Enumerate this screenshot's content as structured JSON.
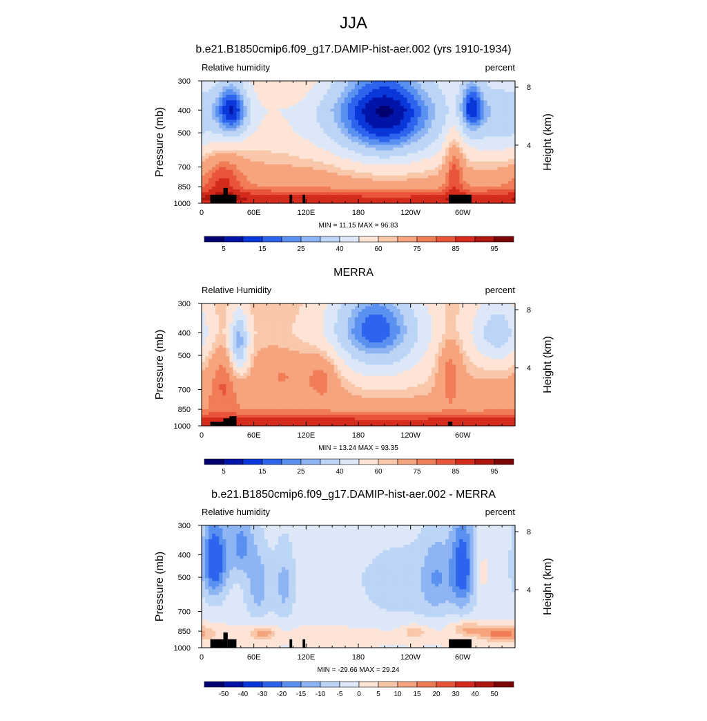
{
  "figure": {
    "title": "JJA",
    "colors": {
      "rh_levels": [
        "#000070",
        "#0014a8",
        "#0a37d9",
        "#2d64ee",
        "#5a91f0",
        "#8db4f3",
        "#bcd4f6",
        "#dce8f8",
        "#fde4d7",
        "#f9c7aa",
        "#f6a47e",
        "#f17d57",
        "#e9553a",
        "#d42b1d",
        "#ad160e",
        "#7e0505"
      ],
      "diff_levels": [
        "#000070",
        "#0014a8",
        "#0a37d9",
        "#2d64ee",
        "#5a91f0",
        "#8db4f3",
        "#bcd4f6",
        "#dce8f8",
        "#fde4d7",
        "#f9c7aa",
        "#f6a47e",
        "#f17d57",
        "#e9553a",
        "#d42b1d",
        "#ad160e",
        "#7e0505"
      ]
    }
  },
  "chart_data": [
    {
      "type": "heatmap",
      "title": "b.e21.B1850cmip6.f09_g17.DAMIP-hist-aer.002 (yrs 1910-1934)",
      "variable": "Relative humidity",
      "units": "percent",
      "ylabel": "Pressure (mb)",
      "ylabel_right": "Height (km)",
      "x_ticks": [
        "0",
        "60E",
        "120E",
        "180",
        "120W",
        "60W"
      ],
      "x_tick_values": [
        0,
        60,
        120,
        180,
        240,
        300
      ],
      "xlim": [
        0,
        360
      ],
      "y_ticks": [
        "300",
        "400",
        "500",
        "700",
        "850",
        "1000"
      ],
      "y_tick_values": [
        300,
        400,
        500,
        700,
        850,
        1000
      ],
      "ylim": [
        300,
        1000
      ],
      "y_scale": "log",
      "y_right_ticks": [
        "8",
        "4"
      ],
      "y_right_tick_values": [
        8,
        4
      ],
      "min_max_label": "MIN = 11.15  MAX = 96.83",
      "min": 11.15,
      "max": 96.83,
      "colorbar_labels": [
        "5",
        "15",
        "25",
        "40",
        "60",
        "75",
        "85",
        "95"
      ],
      "colorbar_levels": [
        0,
        5,
        10,
        15,
        20,
        25,
        30,
        40,
        50,
        60,
        65,
        75,
        80,
        85,
        90,
        95,
        100
      ],
      "colormap": "rh",
      "field": {
        "base": [
          [
            300,
            58
          ],
          [
            400,
            52
          ],
          [
            500,
            56
          ],
          [
            700,
            68
          ],
          [
            850,
            76
          ],
          [
            950,
            90
          ],
          [
            1000,
            86
          ]
        ],
        "blobs": [
          {
            "lon": 35,
            "p": 400,
            "slon": 14,
            "sp": 90,
            "amp": -38
          },
          {
            "lon": 105,
            "p": 170,
            "slon": 20,
            "sp": 120,
            "amp": 10
          },
          {
            "lon": 210,
            "p": 400,
            "slon": 45,
            "sp": 170,
            "amp": -42
          },
          {
            "lon": 195,
            "p": 600,
            "slon": 70,
            "sp": 220,
            "amp": -10
          },
          {
            "lon": 310,
            "p": 380,
            "slon": 10,
            "sp": 80,
            "amp": -28
          },
          {
            "lon": 345,
            "p": 430,
            "slon": 30,
            "sp": 140,
            "amp": -20
          },
          {
            "lon": 25,
            "p": 750,
            "slon": 16,
            "sp": 140,
            "amp": 14
          },
          {
            "lon": 290,
            "p": 650,
            "slon": 8,
            "sp": 180,
            "amp": 20
          },
          {
            "lon": 150,
            "p": 690,
            "slon": 40,
            "sp": 140,
            "amp": 4
          }
        ]
      },
      "topo_mb": [
        [
          10,
          920
        ],
        [
          25,
          920
        ],
        [
          25,
          860
        ],
        [
          30,
          860
        ],
        [
          30,
          920
        ],
        [
          40,
          920
        ],
        [
          101,
          920
        ],
        [
          104,
          920
        ],
        [
          116,
          920
        ],
        [
          119,
          920
        ],
        [
          284,
          920
        ],
        [
          310,
          920
        ]
      ]
    },
    {
      "type": "heatmap",
      "title": "MERRA",
      "variable": "Relative Humidity",
      "units": "percent",
      "ylabel": "Pressure (mb)",
      "ylabel_right": "Height (km)",
      "x_ticks": [
        "0",
        "60E",
        "120E",
        "180",
        "120W",
        "60W"
      ],
      "x_tick_values": [
        0,
        60,
        120,
        180,
        240,
        300
      ],
      "xlim": [
        0,
        360
      ],
      "y_ticks": [
        "300",
        "400",
        "500",
        "700",
        "850",
        "1000"
      ],
      "y_tick_values": [
        300,
        400,
        500,
        700,
        850,
        1000
      ],
      "ylim": [
        300,
        1000
      ],
      "y_scale": "log",
      "y_right_ticks": [
        "8",
        "4"
      ],
      "y_right_tick_values": [
        8,
        4
      ],
      "min_max_label": "MIN = 13.24  MAX = 93.35",
      "min": 13.24,
      "max": 93.35,
      "colorbar_labels": [
        "5",
        "15",
        "25",
        "40",
        "60",
        "75",
        "85",
        "95"
      ],
      "colorbar_levels": [
        0,
        5,
        10,
        15,
        20,
        25,
        30,
        40,
        50,
        60,
        65,
        75,
        80,
        85,
        90,
        95,
        100
      ],
      "colormap": "rh",
      "field": {
        "base": [
          [
            300,
            64
          ],
          [
            400,
            62
          ],
          [
            500,
            66
          ],
          [
            700,
            70
          ],
          [
            850,
            74
          ],
          [
            950,
            88
          ],
          [
            1000,
            86
          ]
        ],
        "blobs": [
          {
            "lon": 43,
            "p": 450,
            "slon": 8,
            "sp": 100,
            "amp": -38
          },
          {
            "lon": 200,
            "p": 380,
            "slon": 40,
            "sp": 140,
            "amp": -45
          },
          {
            "lon": 340,
            "p": 400,
            "slon": 22,
            "sp": 110,
            "amp": -28
          },
          {
            "lon": 140,
            "p": 600,
            "slon": 14,
            "sp": 110,
            "amp": 14
          },
          {
            "lon": 95,
            "p": 600,
            "slon": 20,
            "sp": 80,
            "amp": 8
          },
          {
            "lon": 25,
            "p": 620,
            "slon": 12,
            "sp": 160,
            "amp": 12
          },
          {
            "lon": 285,
            "p": 580,
            "slon": 10,
            "sp": 140,
            "amp": 16
          },
          {
            "lon": 220,
            "p": 650,
            "slon": 55,
            "sp": 140,
            "amp": -8
          }
        ]
      },
      "topo_mb": [
        [
          10,
          960
        ],
        [
          25,
          960
        ],
        [
          25,
          930
        ],
        [
          32,
          930
        ],
        [
          32,
          910
        ],
        [
          40,
          910
        ],
        [
          283,
          960
        ],
        [
          288,
          960
        ]
      ]
    },
    {
      "type": "heatmap",
      "title": "b.e21.B1850cmip6.f09_g17.DAMIP-hist-aer.002 - MERRA",
      "variable": "Relative humidity",
      "units": "percent",
      "ylabel": "Pressure (mb)",
      "ylabel_right": "Height (km)",
      "x_ticks": [
        "0",
        "60E",
        "120E",
        "180",
        "120W",
        "60W"
      ],
      "x_tick_values": [
        0,
        60,
        120,
        180,
        240,
        300
      ],
      "xlim": [
        0,
        360
      ],
      "y_ticks": [
        "300",
        "400",
        "500",
        "700",
        "850",
        "1000"
      ],
      "y_tick_values": [
        300,
        400,
        500,
        700,
        850,
        1000
      ],
      "ylim": [
        300,
        1000
      ],
      "y_scale": "log",
      "y_right_ticks": [
        "8",
        "4"
      ],
      "y_right_tick_values": [
        8,
        4
      ],
      "min_max_label": "MIN = -29.66  MAX = 29.24",
      "min": -29.66,
      "max": 29.24,
      "colorbar_labels": [
        "-50",
        "-40",
        "-30",
        "-20",
        "-15",
        "-10",
        "-5",
        "0",
        "5",
        "10",
        "15",
        "20",
        "30",
        "40",
        "50"
      ],
      "colorbar_levels": [
        -60,
        -50,
        -40,
        -30,
        -20,
        -15,
        -10,
        -5,
        0,
        5,
        10,
        15,
        20,
        30,
        40,
        50,
        60
      ],
      "colormap": "diff",
      "field": {
        "base": [
          [
            300,
            -2
          ],
          [
            500,
            -3
          ],
          [
            700,
            -2
          ],
          [
            850,
            1
          ],
          [
            1000,
            0
          ]
        ],
        "blobs": [
          {
            "lon": 15,
            "p": 420,
            "slon": 10,
            "sp": 120,
            "amp": -24
          },
          {
            "lon": 45,
            "p": 360,
            "slon": 10,
            "sp": 80,
            "amp": -14
          },
          {
            "lon": 65,
            "p": 550,
            "slon": 10,
            "sp": 150,
            "amp": -10
          },
          {
            "lon": 95,
            "p": 550,
            "slon": 8,
            "sp": 150,
            "amp": -9
          },
          {
            "lon": 300,
            "p": 450,
            "slon": 10,
            "sp": 150,
            "amp": -22
          },
          {
            "lon": 270,
            "p": 500,
            "slon": 12,
            "sp": 150,
            "amp": -10
          },
          {
            "lon": 230,
            "p": 550,
            "slon": 35,
            "sp": 160,
            "amp": -5
          },
          {
            "lon": 70,
            "p": 870,
            "slon": 10,
            "sp": 40,
            "amp": 14
          },
          {
            "lon": 345,
            "p": 870,
            "slon": 18,
            "sp": 45,
            "amp": 18
          },
          {
            "lon": 305,
            "p": 830,
            "slon": 12,
            "sp": 45,
            "amp": 10
          },
          {
            "lon": 245,
            "p": 860,
            "slon": 10,
            "sp": 40,
            "amp": 8
          },
          {
            "lon": 320,
            "p": 480,
            "slon": 8,
            "sp": 80,
            "amp": 6
          }
        ]
      },
      "topo_mb": [
        [
          10,
          920
        ],
        [
          25,
          920
        ],
        [
          25,
          860
        ],
        [
          30,
          860
        ],
        [
          30,
          920
        ],
        [
          40,
          920
        ],
        [
          101,
          920
        ],
        [
          104,
          920
        ],
        [
          116,
          920
        ],
        [
          119,
          920
        ],
        [
          284,
          920
        ],
        [
          310,
          920
        ]
      ]
    }
  ]
}
